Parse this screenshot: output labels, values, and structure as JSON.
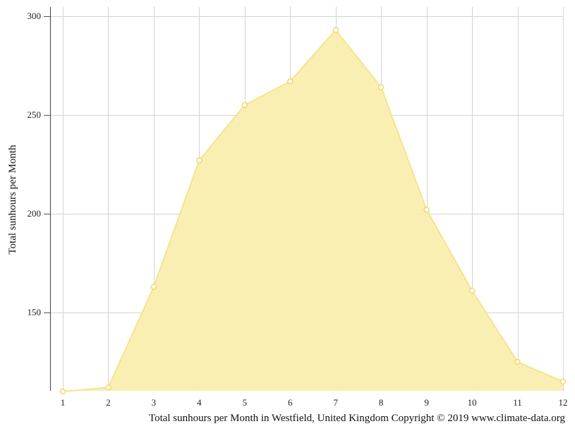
{
  "chart_data": {
    "type": "area",
    "x": [
      1,
      2,
      3,
      4,
      5,
      6,
      7,
      8,
      9,
      10,
      11,
      12
    ],
    "values": [
      110,
      112,
      163,
      227,
      255,
      267,
      293,
      264,
      202,
      161,
      125,
      115
    ],
    "title": "Total sunhours per Month in Westfield, United Kingdom Copyright © 2019 www.climate-data.org",
    "xlabel": "",
    "ylabel": "Total sunhours per Month",
    "ylim": [
      110,
      305
    ],
    "yticks": [
      150,
      200,
      250,
      300
    ],
    "grid": true,
    "colors": {
      "fill": "#faeeaf",
      "line": "#f7e48a",
      "marker_stroke": "#f0d24a",
      "grid": "#d4d4d4",
      "axis": "#555555"
    }
  }
}
